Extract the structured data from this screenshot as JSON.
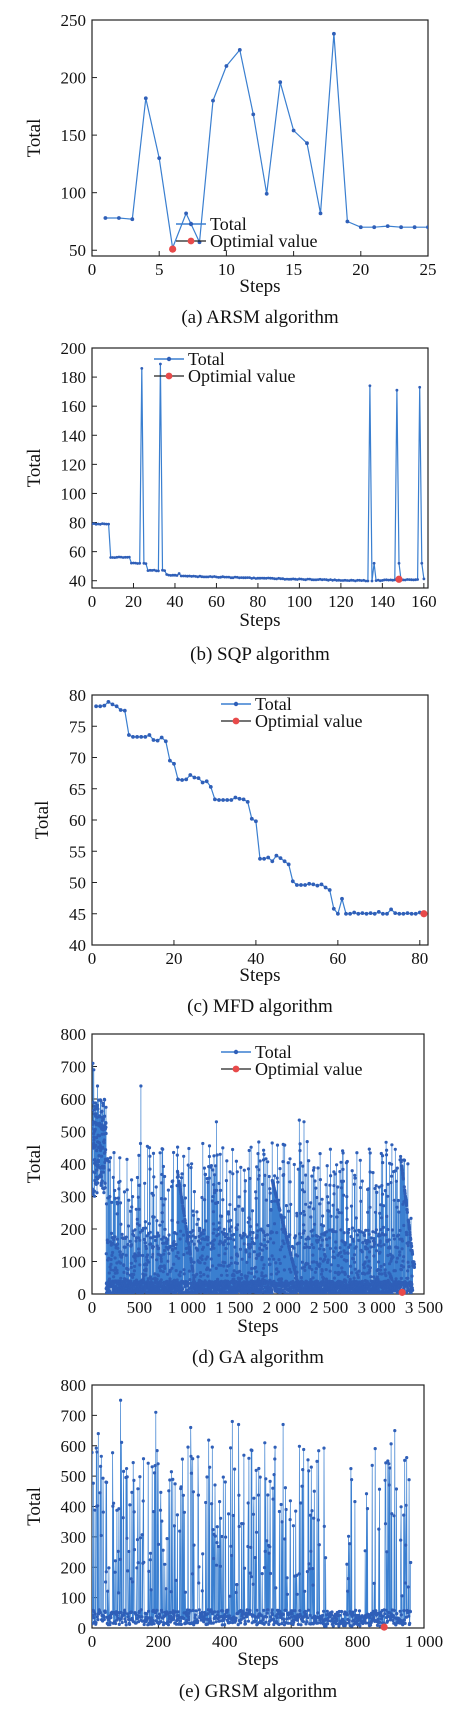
{
  "figure": {
    "line_color": "#3a7fd0",
    "marker_color": "#2f5fb8",
    "optimal_color": "#e84a4a"
  },
  "chart_data": [
    {
      "type": "line",
      "caption": "(a) ARSM algorithm",
      "xlabel": "Steps",
      "ylabel": "Total",
      "xlim": [
        0,
        25
      ],
      "ylim": [
        45,
        250
      ],
      "xticks": [
        0,
        5,
        10,
        15,
        20,
        25
      ],
      "xtick_labels": [
        "0",
        "5",
        "10",
        "15",
        "20",
        "25"
      ],
      "yticks": [
        50,
        100,
        150,
        200,
        250
      ],
      "ytick_labels": [
        "50",
        "100",
        "150",
        "200",
        "250"
      ],
      "legend": [
        "Total",
        "Optimial value"
      ],
      "series": [
        {
          "name": "Total",
          "x": [
            1,
            2,
            3,
            4,
            5,
            6,
            7,
            8,
            9,
            10,
            11,
            12,
            13,
            14,
            15,
            16,
            17,
            18,
            19,
            20,
            21,
            22,
            23,
            24,
            25
          ],
          "y": [
            78,
            78,
            77,
            182,
            130,
            52,
            82,
            57,
            180,
            210,
            224,
            168,
            99,
            196,
            154,
            143,
            82,
            238,
            75,
            70,
            70,
            71,
            70,
            70,
            70
          ]
        }
      ],
      "optimal": {
        "x": 6,
        "y": 51
      }
    },
    {
      "type": "line",
      "caption": "(b) SQP algorithm",
      "xlabel": "Steps",
      "ylabel": "Total",
      "xlim": [
        0,
        162
      ],
      "ylim": [
        35,
        200
      ],
      "xticks": [
        0,
        20,
        40,
        60,
        80,
        100,
        120,
        140,
        160
      ],
      "xtick_labels": [
        "0",
        "20",
        "40",
        "60",
        "80",
        "100",
        "120",
        "140",
        "160"
      ],
      "yticks": [
        40,
        60,
        80,
        100,
        120,
        140,
        160,
        180,
        200
      ],
      "ytick_labels": [
        "40",
        "60",
        "80",
        "100",
        "120",
        "140",
        "160",
        "180",
        "200"
      ],
      "legend": [
        "Total",
        "Optimial value"
      ],
      "series": [
        {
          "name": "Total",
          "knots": [
            [
              0,
              79
            ],
            [
              8,
              79
            ],
            [
              9,
              56
            ],
            [
              18,
              56
            ],
            [
              19,
              52
            ],
            [
              26,
              52
            ],
            [
              27,
              47
            ],
            [
              35,
              47
            ],
            [
              36,
              44
            ],
            [
              50,
              43
            ],
            [
              100,
              41
            ],
            [
              132,
              40
            ],
            [
              160,
              41
            ]
          ],
          "spikes": [
            [
              24,
              186
            ],
            [
              33,
              189
            ],
            [
              42,
              45
            ],
            [
              134,
              174
            ],
            [
              136,
              52
            ],
            [
              147,
              171
            ],
            [
              148,
              52
            ],
            [
              158,
              173
            ],
            [
              159,
              52
            ]
          ]
        }
      ],
      "optimal": {
        "x": 148,
        "y": 41
      }
    },
    {
      "type": "line",
      "caption": "(c) MFD algorithm",
      "xlabel": "Steps",
      "ylabel": "Total",
      "xlim": [
        0,
        82
      ],
      "ylim": [
        40,
        80
      ],
      "xticks": [
        0,
        20,
        40,
        60,
        80
      ],
      "xtick_labels": [
        "0",
        "20",
        "40",
        "60",
        "80"
      ],
      "yticks": [
        40,
        45,
        50,
        55,
        60,
        65,
        70,
        75,
        80
      ],
      "ytick_labels": [
        "40",
        "45",
        "50",
        "55",
        "60",
        "65",
        "70",
        "75",
        "80"
      ],
      "legend": [
        "Total",
        "Optimial value"
      ],
      "series": [
        {
          "name": "Total",
          "x": [
            1,
            2,
            3,
            4,
            5,
            6,
            7,
            8,
            9,
            10,
            11,
            12,
            13,
            14,
            15,
            16,
            17,
            18,
            19,
            20,
            21,
            22,
            23,
            24,
            25,
            26,
            27,
            28,
            29,
            30,
            31,
            32,
            33,
            34,
            35,
            36,
            37,
            38,
            39,
            40,
            41,
            42,
            43,
            44,
            45,
            46,
            47,
            48,
            49,
            50,
            51,
            52,
            53,
            54,
            55,
            56,
            57,
            58,
            59,
            60,
            61,
            62,
            63,
            64,
            65,
            66,
            67,
            68,
            69,
            70,
            71,
            72,
            73,
            74,
            75,
            76,
            77,
            78,
            79,
            80
          ],
          "y": [
            78.2,
            78.2,
            78.3,
            78.9,
            78.5,
            78.2,
            77.6,
            77.5,
            73.6,
            73.3,
            73.3,
            73.3,
            73.3,
            73.6,
            72.8,
            72.7,
            73.2,
            72.6,
            69.5,
            69.0,
            66.5,
            66.4,
            66.5,
            67.2,
            66.8,
            66.7,
            66.0,
            66.2,
            65.3,
            63.3,
            63.2,
            63.2,
            63.2,
            63.2,
            63.6,
            63.4,
            63.3,
            62.9,
            60.2,
            59.8,
            53.8,
            53.8,
            54.0,
            53.4,
            54.3,
            53.9,
            53.4,
            52.9,
            50.2,
            49.6,
            49.6,
            49.6,
            49.8,
            49.7,
            49.5,
            49.7,
            49.2,
            48.8,
            45.8,
            45.0,
            47.4,
            45.0,
            45.0,
            45.2,
            45.0,
            45.1,
            45.0,
            45.1,
            45.0,
            45.3,
            45.0,
            45.0,
            45.7,
            45.1,
            45.0,
            45.0,
            45.1,
            45.0,
            45.0,
            45.2
          ]
        }
      ],
      "optimal": {
        "x": 81,
        "y": 45
      }
    },
    {
      "type": "line",
      "caption": "(d) GA algorithm",
      "xlabel": "Steps",
      "ylabel": "Total",
      "xlim": [
        0,
        3500
      ],
      "ylim": [
        0,
        800
      ],
      "xticks": [
        0,
        500,
        1000,
        1500,
        2000,
        2500,
        3000,
        3500
      ],
      "xtick_labels": [
        "0",
        "500",
        "1 000",
        "1 500",
        "2 000",
        "2 500",
        "3 000",
        "3 500"
      ],
      "yticks": [
        0,
        100,
        200,
        300,
        400,
        500,
        600,
        700,
        800
      ],
      "ytick_labels": [
        "0",
        "100",
        "200",
        "300",
        "400",
        "500",
        "600",
        "700",
        "800"
      ],
      "legend": [
        "Total",
        "Optimial value"
      ],
      "series": [
        {
          "name": "Total",
          "n_points": 3400,
          "bands": [
            [
              0,
              1050
            ],
            [
              1150,
              2150
            ],
            [
              2250,
              3200
            ]
          ],
          "ramps": [
            [
              900,
              380,
              1100,
              0
            ],
            [
              1900,
              350,
              2200,
              0
            ],
            [
              3250,
              430,
              3380,
              120
            ]
          ],
          "peaks": [
            [
              10,
              710
            ],
            [
              20,
              690
            ],
            [
              60,
              640
            ],
            [
              530,
              640
            ],
            [
              100,
              560
            ],
            [
              1350,
              530
            ],
            [
              2250,
              535
            ],
            [
              2300,
              530
            ]
          ]
        }
      ],
      "optimal": {
        "x": 3270,
        "y": 5
      }
    },
    {
      "type": "line",
      "caption": "(e) GRSM algorithm",
      "xlabel": "Steps",
      "ylabel": "Total",
      "xlim": [
        0,
        1000
      ],
      "ylim": [
        0,
        800
      ],
      "xticks": [
        0,
        200,
        400,
        600,
        800,
        1000
      ],
      "xtick_labels": [
        "0",
        "200",
        "400",
        "600",
        "800",
        "1 000"
      ],
      "yticks": [
        0,
        100,
        200,
        300,
        400,
        500,
        600,
        700,
        800
      ],
      "ytick_labels": [
        "0",
        "100",
        "200",
        "300",
        "400",
        "500",
        "600",
        "700",
        "800"
      ],
      "legend": [],
      "series": [
        {
          "name": "Total",
          "n_points": 960,
          "peaks": [
            [
              90,
              750
            ],
            [
              200,
              710
            ],
            [
              20,
              640
            ],
            [
              440,
              680
            ],
            [
              460,
              670
            ],
            [
              600,
              670
            ],
            [
              950,
              650
            ],
            [
              310,
              660
            ],
            [
              800,
              210
            ]
          ]
        }
      ],
      "optimal": {
        "x": 880,
        "y": 3
      }
    }
  ]
}
